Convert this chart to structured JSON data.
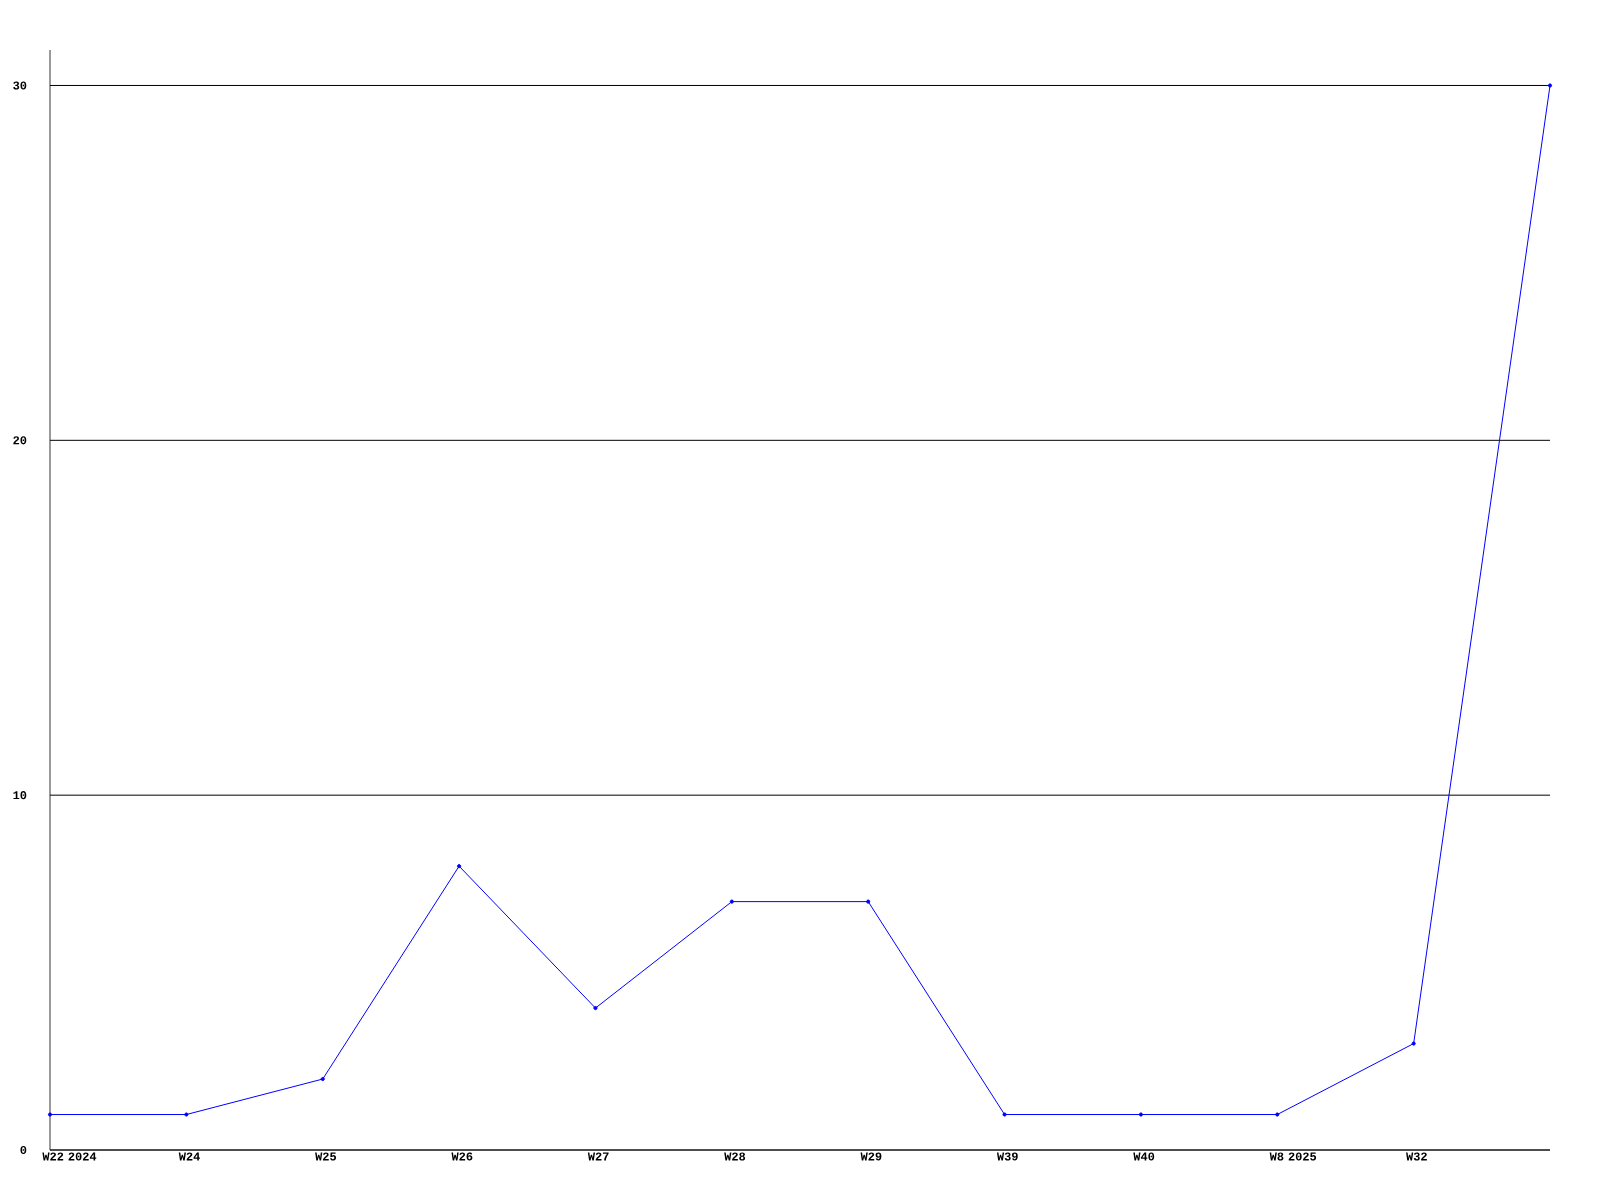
{
  "chart_data": {
    "type": "line",
    "categories": [
      "W22 2024",
      "W24",
      "W25",
      "W26",
      "W27",
      "W28",
      "W29",
      "W39",
      "W40",
      "W8 2025",
      "W32",
      null
    ],
    "series": [
      {
        "color": "#0000ff",
        "values": [
          1,
          1,
          2,
          8,
          4,
          7,
          7,
          1,
          1,
          1,
          3,
          30
        ]
      }
    ],
    "ylim": [
      0,
      31
    ],
    "yticks": [
      0,
      10,
      20,
      30
    ],
    "grid": "y",
    "marker": "circle",
    "line_style": "solid"
  }
}
